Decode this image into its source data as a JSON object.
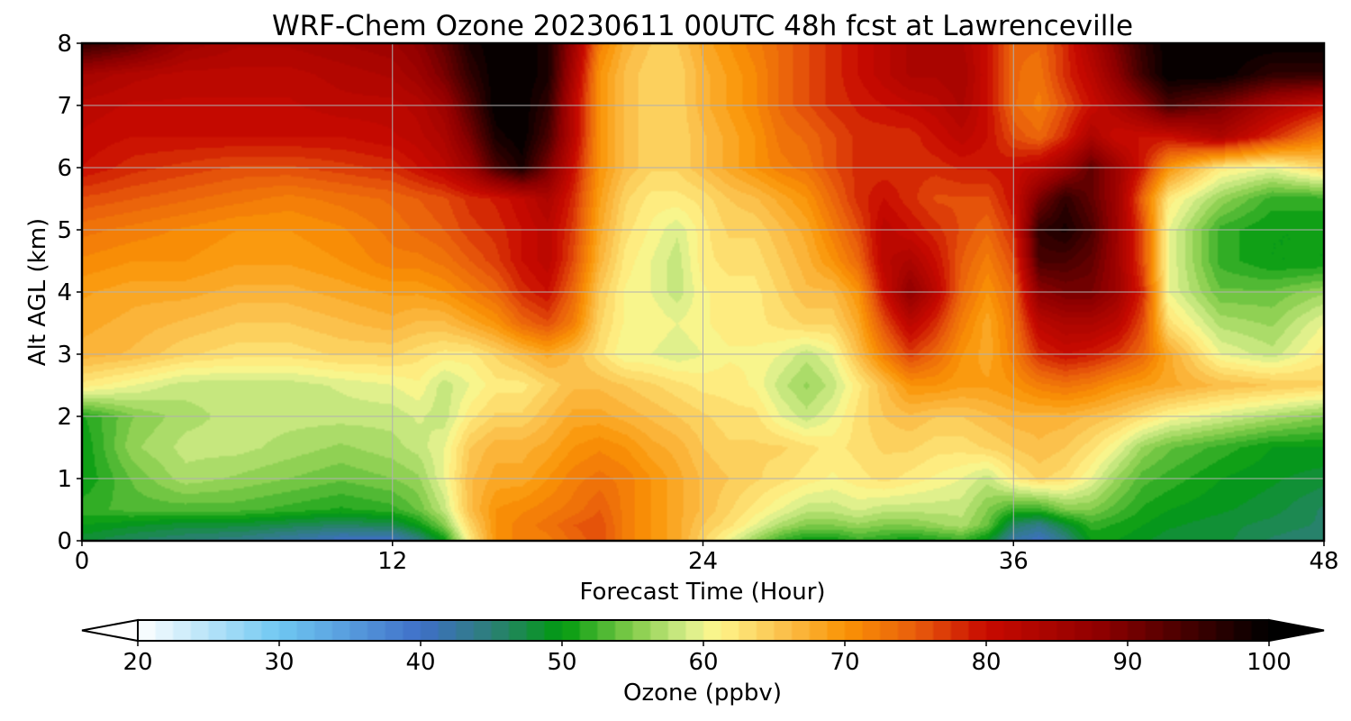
{
  "chart_data": {
    "type": "heatmap",
    "title": "WRF-Chem Ozone  20230611 00UTC 48h fcst at Lawrenceville",
    "xlabel": "Forecast Time (Hour)",
    "ylabel": "Alt AGL (km)",
    "xlim": [
      0,
      48
    ],
    "ylim": [
      0,
      8
    ],
    "xticks": [
      "0",
      "12",
      "24",
      "36",
      "48"
    ],
    "xtick_values": [
      0,
      12,
      24,
      36,
      48
    ],
    "yticks": [
      "0",
      "1",
      "2",
      "3",
      "4",
      "5",
      "6",
      "7",
      "8"
    ],
    "ytick_values": [
      0,
      1,
      2,
      3,
      4,
      5,
      6,
      7,
      8
    ],
    "grid": true,
    "colorbar": {
      "label": "Ozone  (ppbv)",
      "ticks": [
        "20",
        "30",
        "40",
        "50",
        "60",
        "70",
        "80",
        "90",
        "100"
      ],
      "tick_values": [
        20,
        30,
        40,
        50,
        60,
        70,
        80,
        90,
        100
      ],
      "range": [
        20,
        100
      ],
      "extend": "both",
      "placement": "bottom",
      "colors": [
        {
          "v": 20,
          "c": "#ffffff"
        },
        {
          "v": 30,
          "c": "#6fc8f2"
        },
        {
          "v": 40,
          "c": "#3f6fc8"
        },
        {
          "v": 45,
          "c": "#2d7f78"
        },
        {
          "v": 50,
          "c": "#009a0f"
        },
        {
          "v": 55,
          "c": "#82cc4a"
        },
        {
          "v": 59,
          "c": "#d9ef8c"
        },
        {
          "v": 61,
          "c": "#fff68c"
        },
        {
          "v": 66,
          "c": "#fbbd47"
        },
        {
          "v": 70,
          "c": "#fa9405"
        },
        {
          "v": 75,
          "c": "#e95d0c"
        },
        {
          "v": 80,
          "c": "#c80a00"
        },
        {
          "v": 88,
          "c": "#8f0000"
        },
        {
          "v": 100,
          "c": "#000000"
        }
      ]
    },
    "x": [
      0,
      2,
      4,
      6,
      8,
      10,
      12,
      13,
      14,
      15,
      16,
      17,
      18,
      19,
      20,
      21,
      22,
      23,
      24,
      25,
      26,
      27,
      28,
      29,
      30,
      31,
      32,
      33,
      34,
      35,
      36,
      37,
      38,
      39,
      40,
      41,
      42,
      44,
      46,
      48
    ],
    "y": [
      0,
      0.25,
      0.5,
      1,
      1.5,
      2,
      2.5,
      3,
      3.5,
      4,
      4.5,
      5,
      5.5,
      6,
      6.5,
      7,
      7.5,
      8
    ],
    "ozone_ppbv": [
      [
        48,
        46,
        45,
        44,
        42,
        40,
        40,
        44,
        50,
        62,
        70,
        72,
        72,
        74,
        76,
        72,
        70,
        68,
        64,
        60,
        56,
        52,
        50,
        50,
        52,
        51,
        50,
        51,
        52,
        49,
        42,
        40,
        44,
        50,
        50,
        49,
        48,
        48,
        46,
        45
      ],
      [
        50,
        49,
        48,
        48,
        47,
        46,
        47,
        50,
        55,
        64,
        70,
        72,
        73,
        75,
        76,
        72,
        70,
        68,
        65,
        63,
        60,
        57,
        55,
        55,
        56,
        55,
        55,
        56,
        57,
        54,
        46,
        44,
        48,
        52,
        51,
        50,
        49,
        48,
        47,
        46
      ],
      [
        52,
        53,
        53,
        53,
        52,
        51,
        52,
        54,
        58,
        66,
        70,
        71,
        72,
        73,
        75,
        72,
        70,
        68,
        66,
        64,
        62,
        60,
        58,
        58,
        59,
        58,
        58,
        58,
        58,
        55,
        52,
        52,
        55,
        55,
        53,
        51,
        50,
        49,
        48,
        46
      ],
      [
        50,
        54,
        57,
        56,
        55,
        54,
        55,
        56,
        60,
        66,
        68,
        68,
        70,
        72,
        73,
        72,
        70,
        68,
        66,
        65,
        64,
        63,
        62,
        61,
        62,
        63,
        62,
        61,
        60,
        58,
        62,
        64,
        63,
        60,
        56,
        53,
        52,
        50,
        49,
        48
      ],
      [
        50,
        56,
        58,
        58,
        57,
        56,
        57,
        58,
        60,
        65,
        67,
        67,
        68,
        70,
        71,
        70,
        68,
        67,
        65,
        64,
        64,
        64,
        63,
        62,
        63,
        64,
        64,
        63,
        63,
        64,
        65,
        66,
        65,
        63,
        60,
        56,
        54,
        52,
        50,
        50
      ],
      [
        51,
        55,
        57,
        58,
        58,
        58,
        58,
        59,
        58,
        62,
        64,
        64,
        66,
        68,
        68,
        67,
        66,
        65,
        64,
        63,
        63,
        60,
        58,
        60,
        63,
        65,
        66,
        65,
        65,
        66,
        67,
        67,
        67,
        66,
        65,
        63,
        61,
        59,
        57,
        55
      ],
      [
        62,
        60,
        58,
        58,
        58,
        59,
        60,
        61,
        58,
        60,
        62,
        62,
        64,
        66,
        66,
        65,
        64,
        63,
        62,
        62,
        61,
        58,
        56,
        58,
        62,
        66,
        70,
        70,
        69,
        69,
        70,
        72,
        73,
        72,
        70,
        69,
        68,
        66,
        65,
        64
      ],
      [
        67,
        66,
        64,
        63,
        63,
        64,
        64,
        63,
        62,
        62,
        64,
        66,
        68,
        66,
        63,
        60,
        60,
        59,
        60,
        61,
        61,
        60,
        58,
        60,
        66,
        72,
        77,
        74,
        70,
        68,
        72,
        78,
        80,
        79,
        77,
        74,
        68,
        60,
        58,
        62
      ],
      [
        68,
        67,
        66,
        65,
        65,
        66,
        67,
        66,
        66,
        68,
        70,
        74,
        76,
        72,
        64,
        61,
        61,
        60,
        61,
        62,
        62,
        63,
        64,
        64,
        68,
        76,
        82,
        78,
        72,
        68,
        73,
        82,
        84,
        84,
        82,
        76,
        63,
        57,
        56,
        60
      ],
      [
        69,
        68,
        68,
        67,
        67,
        68,
        69,
        69,
        70,
        72,
        74,
        78,
        80,
        74,
        65,
        61,
        60,
        58,
        61,
        62,
        62,
        64,
        66,
        66,
        70,
        80,
        88,
        82,
        74,
        70,
        74,
        88,
        90,
        90,
        86,
        78,
        60,
        54,
        54,
        56
      ],
      [
        71,
        70,
        70,
        69,
        69,
        70,
        72,
        72,
        73,
        75,
        77,
        80,
        82,
        76,
        67,
        62,
        60,
        58,
        62,
        63,
        63,
        65,
        67,
        70,
        74,
        82,
        84,
        80,
        75,
        72,
        76,
        94,
        94,
        92,
        86,
        76,
        60,
        52,
        50,
        50
      ],
      [
        73,
        72,
        71,
        70,
        70,
        71,
        73,
        74,
        75,
        77,
        78,
        80,
        82,
        77,
        68,
        63,
        61,
        59,
        62,
        64,
        64,
        66,
        68,
        72,
        76,
        82,
        80,
        78,
        76,
        74,
        78,
        96,
        98,
        94,
        86,
        76,
        60,
        52,
        50,
        50
      ],
      [
        76,
        75,
        74,
        73,
        72,
        73,
        74,
        75,
        76,
        78,
        79,
        81,
        84,
        78,
        69,
        64,
        62,
        62,
        63,
        65,
        66,
        68,
        70,
        74,
        78,
        80,
        78,
        76,
        76,
        76,
        80,
        90,
        96,
        92,
        86,
        74,
        62,
        56,
        52,
        52
      ],
      [
        80,
        78,
        77,
        76,
        76,
        77,
        78,
        80,
        82,
        86,
        94,
        98,
        90,
        80,
        70,
        66,
        64,
        64,
        66,
        68,
        70,
        72,
        73,
        76,
        78,
        78,
        78,
        78,
        79,
        79,
        80,
        82,
        86,
        92,
        86,
        79,
        70,
        62,
        60,
        64
      ],
      [
        81,
        80,
        80,
        80,
        80,
        80,
        81,
        82,
        84,
        90,
        98,
        100,
        94,
        82,
        70,
        66,
        64,
        64,
        66,
        68,
        70,
        73,
        74,
        76,
        78,
        78,
        78,
        80,
        82,
        80,
        76,
        74,
        78,
        84,
        80,
        80,
        80,
        84,
        78,
        72
      ],
      [
        82,
        81,
        81,
        81,
        81,
        82,
        82,
        83,
        86,
        93,
        100,
        100,
        96,
        82,
        70,
        66,
        64,
        64,
        67,
        69,
        71,
        74,
        76,
        78,
        79,
        80,
        81,
        82,
        84,
        80,
        74,
        72,
        76,
        80,
        84,
        88,
        94,
        90,
        84,
        80
      ],
      [
        85,
        83,
        82,
        82,
        82,
        83,
        84,
        86,
        90,
        96,
        100,
        100,
        98,
        84,
        70,
        66,
        64,
        64,
        67,
        69,
        71,
        74,
        76,
        78,
        80,
        82,
        84,
        84,
        85,
        80,
        74,
        73,
        78,
        82,
        88,
        95,
        100,
        100,
        96,
        96
      ],
      [
        96,
        92,
        86,
        84,
        84,
        85,
        86,
        88,
        92,
        98,
        100,
        100,
        98,
        86,
        72,
        67,
        65,
        65,
        68,
        70,
        72,
        74,
        76,
        78,
        80,
        82,
        84,
        84,
        84,
        80,
        74,
        74,
        78,
        84,
        90,
        96,
        100,
        100,
        100,
        100
      ]
    ]
  }
}
